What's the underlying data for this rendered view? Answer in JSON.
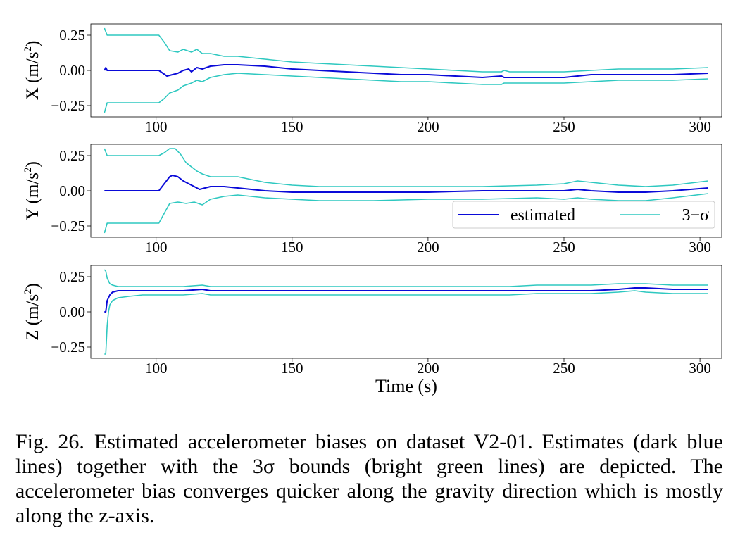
{
  "chart_data": [
    {
      "type": "line",
      "ylabel": "X (m/s",
      "ylabel_exp": "2",
      "ylabel_close": ")",
      "xlim": [
        76,
        308
      ],
      "ylim": [
        -0.33,
        0.33
      ],
      "xticks": [
        100,
        150,
        200,
        250,
        300
      ],
      "xtick_labels": [
        "100",
        "150",
        "200",
        "250",
        "300"
      ],
      "yticks": [
        0.25,
        0.0,
        -0.25
      ],
      "ytick_labels": [
        "0.25",
        "0.00",
        "−0.25"
      ],
      "xlabel": "",
      "series": [
        {
          "name": "estimated",
          "color": "#0a0ad8",
          "x": [
            81,
            81.5,
            82,
            90,
            101,
            104,
            106,
            108,
            110,
            112,
            113,
            115,
            117,
            120,
            125,
            130,
            140,
            150,
            160,
            170,
            180,
            190,
            200,
            210,
            220,
            227,
            228,
            230,
            240,
            250,
            255,
            260,
            270,
            280,
            290,
            303
          ],
          "y": [
            0.0,
            0.02,
            0.0,
            0.0,
            0.0,
            -0.04,
            -0.03,
            -0.02,
            0.0,
            0.01,
            -0.01,
            0.02,
            0.01,
            0.03,
            0.04,
            0.04,
            0.03,
            0.01,
            0.0,
            -0.01,
            -0.02,
            -0.03,
            -0.03,
            -0.04,
            -0.05,
            -0.04,
            -0.05,
            -0.05,
            -0.05,
            -0.05,
            -0.04,
            -0.03,
            -0.03,
            -0.03,
            -0.03,
            -0.02
          ]
        },
        {
          "name": "3−σ upper",
          "color": "#2ec8c0",
          "x": [
            81,
            82,
            90,
            100,
            101,
            103,
            105,
            108,
            110,
            113,
            115,
            117,
            120,
            125,
            130,
            140,
            150,
            160,
            170,
            180,
            190,
            200,
            210,
            220,
            227,
            228,
            230,
            240,
            250,
            260,
            270,
            280,
            290,
            303
          ],
          "y": [
            0.3,
            0.25,
            0.25,
            0.25,
            0.25,
            0.2,
            0.14,
            0.13,
            0.15,
            0.13,
            0.15,
            0.12,
            0.12,
            0.1,
            0.1,
            0.08,
            0.06,
            0.05,
            0.04,
            0.03,
            0.02,
            0.01,
            0.0,
            -0.01,
            -0.01,
            0.0,
            -0.01,
            -0.01,
            -0.01,
            0.0,
            0.01,
            0.01,
            0.01,
            0.02
          ]
        },
        {
          "name": "3−σ lower",
          "color": "#2ec8c0",
          "x": [
            81,
            82,
            90,
            100,
            101,
            103,
            105,
            108,
            110,
            113,
            115,
            117,
            120,
            125,
            130,
            140,
            150,
            160,
            170,
            180,
            190,
            200,
            210,
            220,
            226,
            227,
            228,
            230,
            240,
            250,
            260,
            270,
            280,
            290,
            303
          ],
          "y": [
            -0.3,
            -0.23,
            -0.23,
            -0.23,
            -0.23,
            -0.2,
            -0.16,
            -0.14,
            -0.11,
            -0.09,
            -0.07,
            -0.08,
            -0.05,
            -0.03,
            -0.02,
            -0.03,
            -0.04,
            -0.05,
            -0.06,
            -0.07,
            -0.08,
            -0.08,
            -0.09,
            -0.1,
            -0.1,
            -0.1,
            -0.09,
            -0.09,
            -0.09,
            -0.09,
            -0.08,
            -0.07,
            -0.07,
            -0.07,
            -0.06
          ]
        }
      ]
    },
    {
      "type": "line",
      "ylabel": "Y (m/s",
      "ylabel_exp": "2",
      "ylabel_close": ")",
      "xlim": [
        76,
        308
      ],
      "ylim": [
        -0.33,
        0.33
      ],
      "xticks": [
        100,
        150,
        200,
        250,
        300
      ],
      "xtick_labels": [
        "100",
        "150",
        "200",
        "250",
        "300"
      ],
      "yticks": [
        0.25,
        0.0,
        -0.25
      ],
      "ytick_labels": [
        "0.25",
        "0.00",
        "−0.25"
      ],
      "xlabel": "",
      "legend": {
        "position": "lower-right",
        "entries": [
          "estimated",
          "3−σ"
        ]
      },
      "series": [
        {
          "name": "estimated",
          "color": "#0a0ad8",
          "x": [
            81,
            90,
            101,
            103,
            105,
            106,
            108,
            110,
            112,
            114,
            116,
            118,
            120,
            125,
            130,
            140,
            150,
            160,
            180,
            200,
            220,
            240,
            250,
            255,
            260,
            270,
            280,
            290,
            303
          ],
          "y": [
            0.0,
            0.0,
            0.0,
            0.05,
            0.1,
            0.11,
            0.1,
            0.07,
            0.05,
            0.03,
            0.01,
            0.02,
            0.03,
            0.03,
            0.02,
            0.0,
            -0.01,
            -0.01,
            -0.01,
            -0.01,
            0.0,
            0.0,
            0.0,
            0.01,
            0.0,
            -0.01,
            -0.01,
            0.0,
            0.02
          ]
        },
        {
          "name": "3−σ upper",
          "color": "#2ec8c0",
          "x": [
            81,
            82,
            90,
            101,
            103,
            105,
            107,
            109,
            111,
            113,
            115,
            117,
            120,
            125,
            130,
            135,
            140,
            150,
            160,
            180,
            200,
            220,
            240,
            250,
            255,
            260,
            270,
            280,
            290,
            303
          ],
          "y": [
            0.3,
            0.25,
            0.25,
            0.25,
            0.27,
            0.3,
            0.3,
            0.26,
            0.2,
            0.17,
            0.14,
            0.12,
            0.1,
            0.1,
            0.1,
            0.08,
            0.06,
            0.04,
            0.03,
            0.03,
            0.03,
            0.03,
            0.04,
            0.05,
            0.07,
            0.06,
            0.04,
            0.03,
            0.04,
            0.07
          ]
        },
        {
          "name": "3−σ lower",
          "color": "#2ec8c0",
          "x": [
            81,
            82,
            90,
            101,
            103,
            105,
            108,
            111,
            114,
            117,
            120,
            125,
            130,
            140,
            150,
            160,
            180,
            200,
            220,
            240,
            250,
            255,
            260,
            270,
            280,
            290,
            303
          ],
          "y": [
            -0.3,
            -0.23,
            -0.23,
            -0.23,
            -0.16,
            -0.09,
            -0.08,
            -0.09,
            -0.08,
            -0.1,
            -0.06,
            -0.04,
            -0.03,
            -0.05,
            -0.06,
            -0.07,
            -0.07,
            -0.06,
            -0.06,
            -0.05,
            -0.06,
            -0.05,
            -0.06,
            -0.07,
            -0.07,
            -0.05,
            -0.02
          ]
        }
      ]
    },
    {
      "type": "line",
      "ylabel": "Z (m/s",
      "ylabel_exp": "2",
      "ylabel_close": ")",
      "xlim": [
        76,
        308
      ],
      "ylim": [
        -0.33,
        0.33
      ],
      "xticks": [
        100,
        150,
        200,
        250,
        300
      ],
      "xtick_labels": [
        "100",
        "150",
        "200",
        "250",
        "300"
      ],
      "yticks": [
        0.25,
        0.0,
        -0.25
      ],
      "ytick_labels": [
        "0.25",
        "0.00",
        "−0.25"
      ],
      "xlabel": "Time (s)",
      "series": [
        {
          "name": "estimated",
          "color": "#0a0ad8",
          "x": [
            81,
            81.5,
            82,
            83,
            84,
            86,
            90,
            100,
            110,
            117,
            120,
            130,
            150,
            200,
            230,
            240,
            250,
            260,
            270,
            276,
            280,
            290,
            303
          ],
          "y": [
            0.0,
            0.0,
            0.08,
            0.12,
            0.14,
            0.15,
            0.15,
            0.15,
            0.15,
            0.16,
            0.15,
            0.15,
            0.15,
            0.15,
            0.15,
            0.15,
            0.15,
            0.15,
            0.16,
            0.17,
            0.17,
            0.16,
            0.16
          ]
        },
        {
          "name": "3−σ upper",
          "color": "#2ec8c0",
          "x": [
            81,
            81.5,
            82,
            83,
            84,
            86,
            90,
            100,
            110,
            117,
            120,
            130,
            150,
            200,
            230,
            240,
            250,
            260,
            270,
            276,
            280,
            290,
            303
          ],
          "y": [
            0.3,
            0.29,
            0.24,
            0.2,
            0.19,
            0.18,
            0.18,
            0.18,
            0.18,
            0.19,
            0.18,
            0.18,
            0.18,
            0.18,
            0.18,
            0.19,
            0.19,
            0.19,
            0.2,
            0.2,
            0.2,
            0.19,
            0.19
          ]
        },
        {
          "name": "3−σ lower",
          "color": "#2ec8c0",
          "x": [
            81,
            81.5,
            82,
            82.5,
            83,
            84,
            86,
            90,
            95,
            100,
            110,
            117,
            120,
            130,
            150,
            200,
            230,
            240,
            250,
            260,
            270,
            276,
            280,
            290,
            303
          ],
          "y": [
            -0.3,
            -0.3,
            -0.1,
            0.0,
            0.05,
            0.08,
            0.1,
            0.11,
            0.12,
            0.12,
            0.12,
            0.13,
            0.12,
            0.12,
            0.12,
            0.12,
            0.12,
            0.13,
            0.13,
            0.13,
            0.14,
            0.15,
            0.14,
            0.13,
            0.13
          ]
        }
      ]
    }
  ],
  "caption": {
    "label": "Fig. 26.",
    "text": "Estimated accelerometer biases on dataset V2-01. Estimates (dark blue lines) together with the 3σ bounds (bright green lines) are depicted. The accelerometer bias converges quicker along the gravity direction which is mostly along the z-axis."
  }
}
